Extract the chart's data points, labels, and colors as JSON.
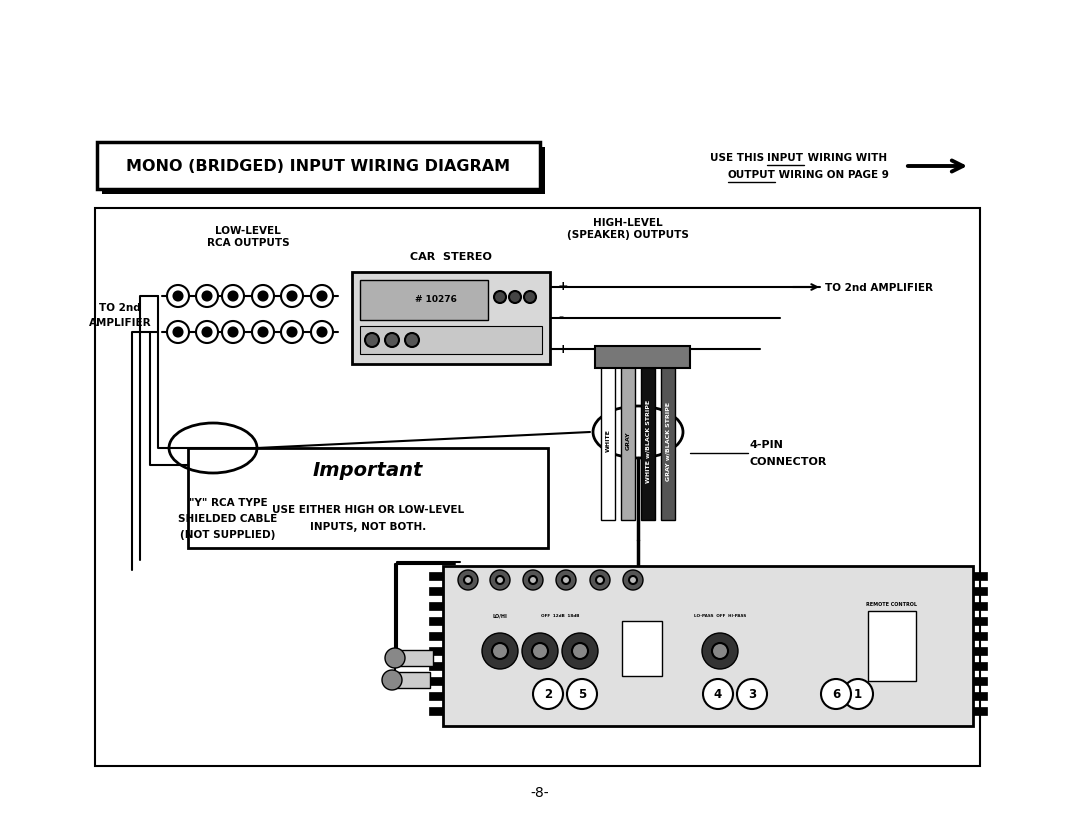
{
  "bg_color": "#ffffff",
  "title": "MONO (BRIDGED) INPUT WIRING DIAGRAM",
  "page_num": "-8-",
  "label_low_level": "LOW-LEVEL\nRCA OUTPUTS",
  "label_car_stereo": "CAR  STEREO",
  "label_high_level": "HIGH-LEVEL\n(SPEAKER) OUTPUTS",
  "label_to2nd_amp_right": "TO 2nd AMPLIFIER",
  "label_to2nd_amp_left_1": "TO 2nd",
  "label_to2nd_amp_left_2": "AMPLIFIER",
  "label_important": "Important",
  "label_use_either_1": "USE EITHER HIGH OR LOW-LEVEL",
  "label_use_either_2": "INPUTS, NOT BOTH.",
  "label_y_rca_1": "\"Y\" RCA TYPE",
  "label_y_rca_2": "SHIELDED CABLE",
  "label_y_rca_3": "(NOT SUPPLIED)",
  "label_4pin_1": "4-PIN",
  "label_4pin_2": "CONNECTOR",
  "label_white": "WHITE",
  "label_gray": "GRAY",
  "label_white_black": "WHITE w/BLACK STRIPE",
  "label_gray_black": "GRAY w/BLACK STRIPE",
  "note_use_this": "USE THIS ",
  "note_input": "INPUT",
  "note_wiring_with": " WIRING WITH",
  "note_output": "OUTPUT",
  "note_wiring_page": " WIRING ON PAGE 9"
}
